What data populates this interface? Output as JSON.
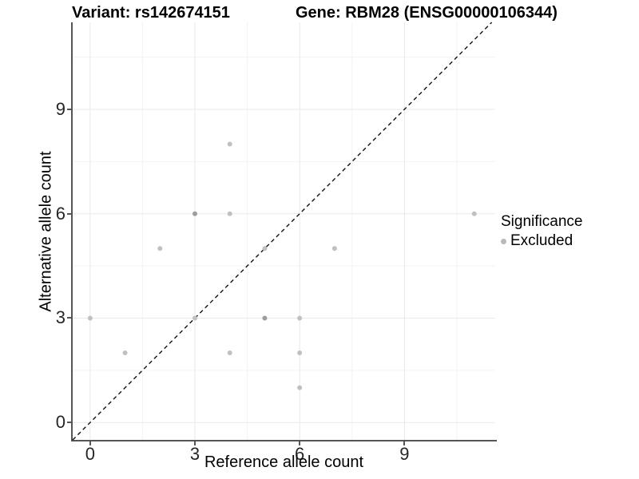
{
  "header": {
    "variant_title": "Variant: rs142674151",
    "gene_title": "Gene: RBM28 (ENSG00000106344)"
  },
  "axes": {
    "x_label": "Reference allele count",
    "y_label": "Alternative allele count"
  },
  "legend": {
    "title": "Significance",
    "items": [
      {
        "label": "Excluded",
        "color": "#b9b9b9"
      }
    ]
  },
  "chart_data": {
    "type": "scatter",
    "title": "Variant: rs142674151 | Gene: RBM28 (ENSG00000106344)",
    "xlabel": "Reference allele count",
    "ylabel": "Alternative allele count",
    "xlim": [
      -0.5,
      11.6
    ],
    "ylim": [
      -0.5,
      11.5
    ],
    "x_ticks": [
      0,
      3,
      6,
      9
    ],
    "y_ticks": [
      0,
      3,
      6,
      9
    ],
    "x_minor_gridlines": [
      1.5,
      4.5,
      7.5,
      10.5
    ],
    "y_minor_gridlines": [
      1.5,
      4.5,
      7.5,
      10.5
    ],
    "grid": "on",
    "legend_position": "right",
    "identity_line": {
      "style": "dashed",
      "color": "#111111",
      "x1": -0.5,
      "y1": -0.5,
      "x2": 11.5,
      "y2": 11.5
    },
    "series": [
      {
        "name": "Excluded",
        "points": [
          {
            "x": 0,
            "y": 3,
            "shade": "light"
          },
          {
            "x": 1,
            "y": 2,
            "shade": "light"
          },
          {
            "x": 2,
            "y": 5,
            "shade": "light"
          },
          {
            "x": 3,
            "y": 3,
            "shade": "light"
          },
          {
            "x": 3,
            "y": 6,
            "shade": "dark"
          },
          {
            "x": 4,
            "y": 2,
            "shade": "light"
          },
          {
            "x": 4,
            "y": 6,
            "shade": "light"
          },
          {
            "x": 4,
            "y": 8,
            "shade": "light"
          },
          {
            "x": 5,
            "y": 3,
            "shade": "dark"
          },
          {
            "x": 5,
            "y": 5,
            "shade": "light"
          },
          {
            "x": 6,
            "y": 1,
            "shade": "light"
          },
          {
            "x": 6,
            "y": 2,
            "shade": "light"
          },
          {
            "x": 6,
            "y": 3,
            "shade": "light"
          },
          {
            "x": 7,
            "y": 5,
            "shade": "light"
          },
          {
            "x": 11,
            "y": 6,
            "shade": "light"
          }
        ]
      }
    ],
    "point_colors": {
      "light": "#c0c0c0",
      "dark": "#9d9d9d"
    },
    "gridline_colors": {
      "major": "#e9e9e9",
      "minor": "#f3f3f3"
    }
  }
}
